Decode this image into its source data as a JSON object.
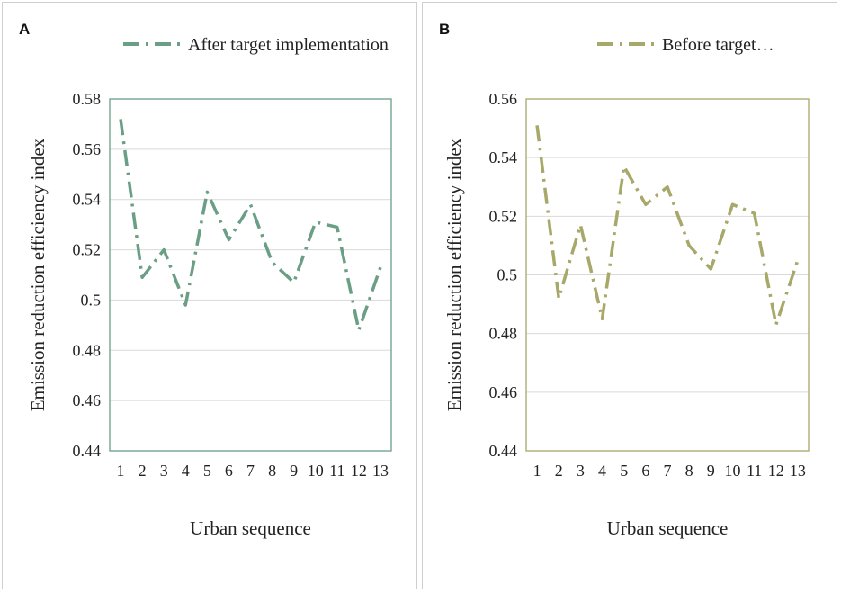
{
  "chart_data": [
    {
      "type": "line",
      "panel_label": "A",
      "legend": "After target implementation",
      "color": "#6a9f86",
      "xlabel": "Urban sequence",
      "ylabel": "Emission reduction efficiency index",
      "ylim": [
        0.44,
        0.58
      ],
      "yticks": [
        "0.58",
        "0.56",
        "0.54",
        "0.52",
        "0.5",
        "0.48",
        "0.46",
        "0.44"
      ],
      "ytick_values": [
        0.58,
        0.56,
        0.54,
        0.52,
        0.5,
        0.48,
        0.46,
        0.44
      ],
      "categories": [
        "1",
        "2",
        "3",
        "4",
        "5",
        "6",
        "7",
        "8",
        "9",
        "10",
        "11",
        "12",
        "13"
      ],
      "values": [
        0.572,
        0.509,
        0.52,
        0.498,
        0.543,
        0.524,
        0.538,
        0.515,
        0.507,
        0.531,
        0.529,
        0.488,
        0.513
      ]
    },
    {
      "type": "line",
      "panel_label": "B",
      "legend": "Before target…",
      "color": "#a8a86a",
      "xlabel": "Urban sequence",
      "ylabel": "Emission reduction efficiency index",
      "ylim": [
        0.44,
        0.56
      ],
      "yticks": [
        "0.56",
        "0.54",
        "0.52",
        "0.5",
        "0.48",
        "0.46",
        "0.44"
      ],
      "ytick_values": [
        0.56,
        0.54,
        0.52,
        0.5,
        0.48,
        0.46,
        0.44
      ],
      "categories": [
        "1",
        "2",
        "3",
        "4",
        "5",
        "6",
        "7",
        "8",
        "9",
        "10",
        "11",
        "12",
        "13"
      ],
      "values": [
        0.551,
        0.492,
        0.517,
        0.485,
        0.537,
        0.524,
        0.53,
        0.51,
        0.502,
        0.524,
        0.521,
        0.483,
        0.505
      ]
    }
  ]
}
